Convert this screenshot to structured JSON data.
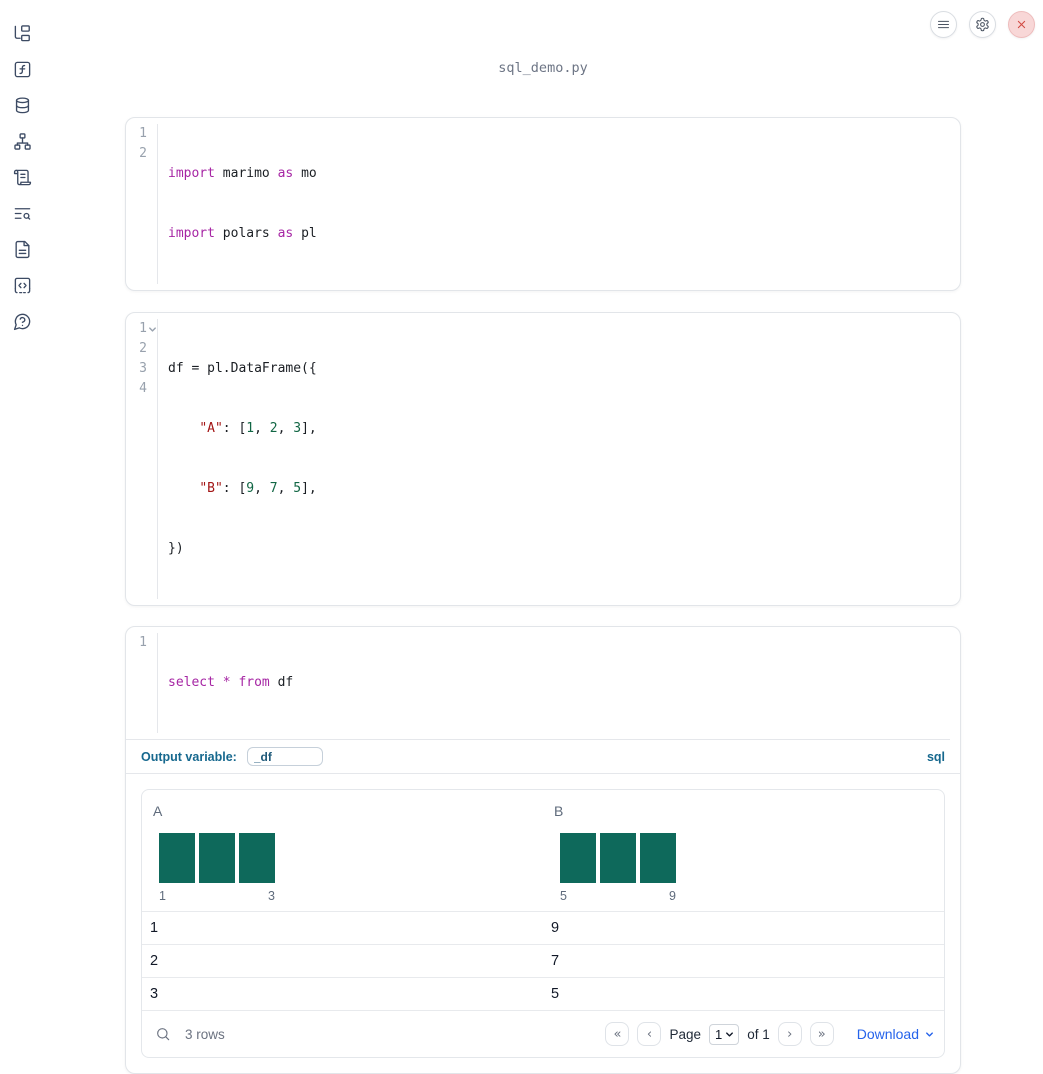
{
  "window": {
    "filename": "sql_demo.py"
  },
  "sidebar": {
    "items": [
      "file-explorer",
      "variables",
      "data-sources",
      "dependency-graph",
      "tracebacks",
      "logs",
      "documentation",
      "snippets",
      "help"
    ]
  },
  "cells": [
    {
      "kind": "python",
      "lines": [
        {
          "n": "1",
          "tokens": [
            {
              "c": "kw",
              "t": "import"
            },
            {
              "c": "pl",
              "t": " marimo "
            },
            {
              "c": "kw",
              "t": "as"
            },
            {
              "c": "pl",
              "t": " mo"
            }
          ]
        },
        {
          "n": "2",
          "tokens": [
            {
              "c": "kw",
              "t": "import"
            },
            {
              "c": "pl",
              "t": " polars "
            },
            {
              "c": "kw",
              "t": "as"
            },
            {
              "c": "pl",
              "t": " pl"
            }
          ]
        }
      ]
    },
    {
      "kind": "python",
      "lines": [
        {
          "n": "1",
          "tokens": [
            {
              "c": "pl",
              "t": "df = pl.DataFrame({"
            }
          ]
        },
        {
          "n": "2",
          "tokens": [
            {
              "c": "pl",
              "t": "    "
            },
            {
              "c": "str",
              "t": "\"A\""
            },
            {
              "c": "pl",
              "t": ": ["
            },
            {
              "c": "num",
              "t": "1"
            },
            {
              "c": "pl",
              "t": ", "
            },
            {
              "c": "num",
              "t": "2"
            },
            {
              "c": "pl",
              "t": ", "
            },
            {
              "c": "num",
              "t": "3"
            },
            {
              "c": "pl",
              "t": "],"
            }
          ]
        },
        {
          "n": "3",
          "tokens": [
            {
              "c": "pl",
              "t": "    "
            },
            {
              "c": "str",
              "t": "\"B\""
            },
            {
              "c": "pl",
              "t": ": ["
            },
            {
              "c": "num",
              "t": "9"
            },
            {
              "c": "pl",
              "t": ", "
            },
            {
              "c": "num",
              "t": "7"
            },
            {
              "c": "pl",
              "t": ", "
            },
            {
              "c": "num",
              "t": "5"
            },
            {
              "c": "pl",
              "t": "],"
            }
          ]
        },
        {
          "n": "4",
          "tokens": [
            {
              "c": "pl",
              "t": "})"
            }
          ]
        }
      ]
    },
    {
      "kind": "sql",
      "lines": [
        {
          "n": "1",
          "tokens": [
            {
              "c": "kw",
              "t": "select"
            },
            {
              "c": "pl",
              "t": " "
            },
            {
              "c": "kw",
              "t": "*"
            },
            {
              "c": "pl",
              "t": " "
            },
            {
              "c": "kw",
              "t": "from"
            },
            {
              "c": "pl",
              "t": " df"
            }
          ]
        }
      ],
      "output_variable_label": "Output variable:",
      "output_variable_value": "_df",
      "language_badge": "sql"
    }
  ],
  "dataframe": {
    "columns": [
      {
        "header": "A",
        "axis_min": "1",
        "axis_max": "3",
        "histogram": {
          "bins": [
            1,
            2,
            3
          ],
          "counts": [
            1,
            1,
            1
          ]
        }
      },
      {
        "header": "B",
        "axis_min": "5",
        "axis_max": "9",
        "histogram": {
          "bins": [
            5,
            7,
            9
          ],
          "counts": [
            1,
            1,
            1
          ]
        }
      }
    ],
    "rows": [
      [
        "1",
        "9"
      ],
      [
        "2",
        "7"
      ],
      [
        "3",
        "5"
      ]
    ],
    "footer": {
      "row_count": "3 rows",
      "page_label": "Page",
      "page_value": "1",
      "page_total_label": "of 1",
      "download_label": "Download"
    }
  },
  "icons": {
    "first_page": "«",
    "prev_page": "‹",
    "next_page": "›",
    "last_page": "»"
  },
  "colors": {
    "histogram_bar": "#0e695b",
    "code_keyword": "#a626a4",
    "code_string": "#a31515",
    "code_number": "#116644",
    "sql_accent": "#16688e",
    "download_link": "#2563eb",
    "close_button": "#d24a43"
  }
}
